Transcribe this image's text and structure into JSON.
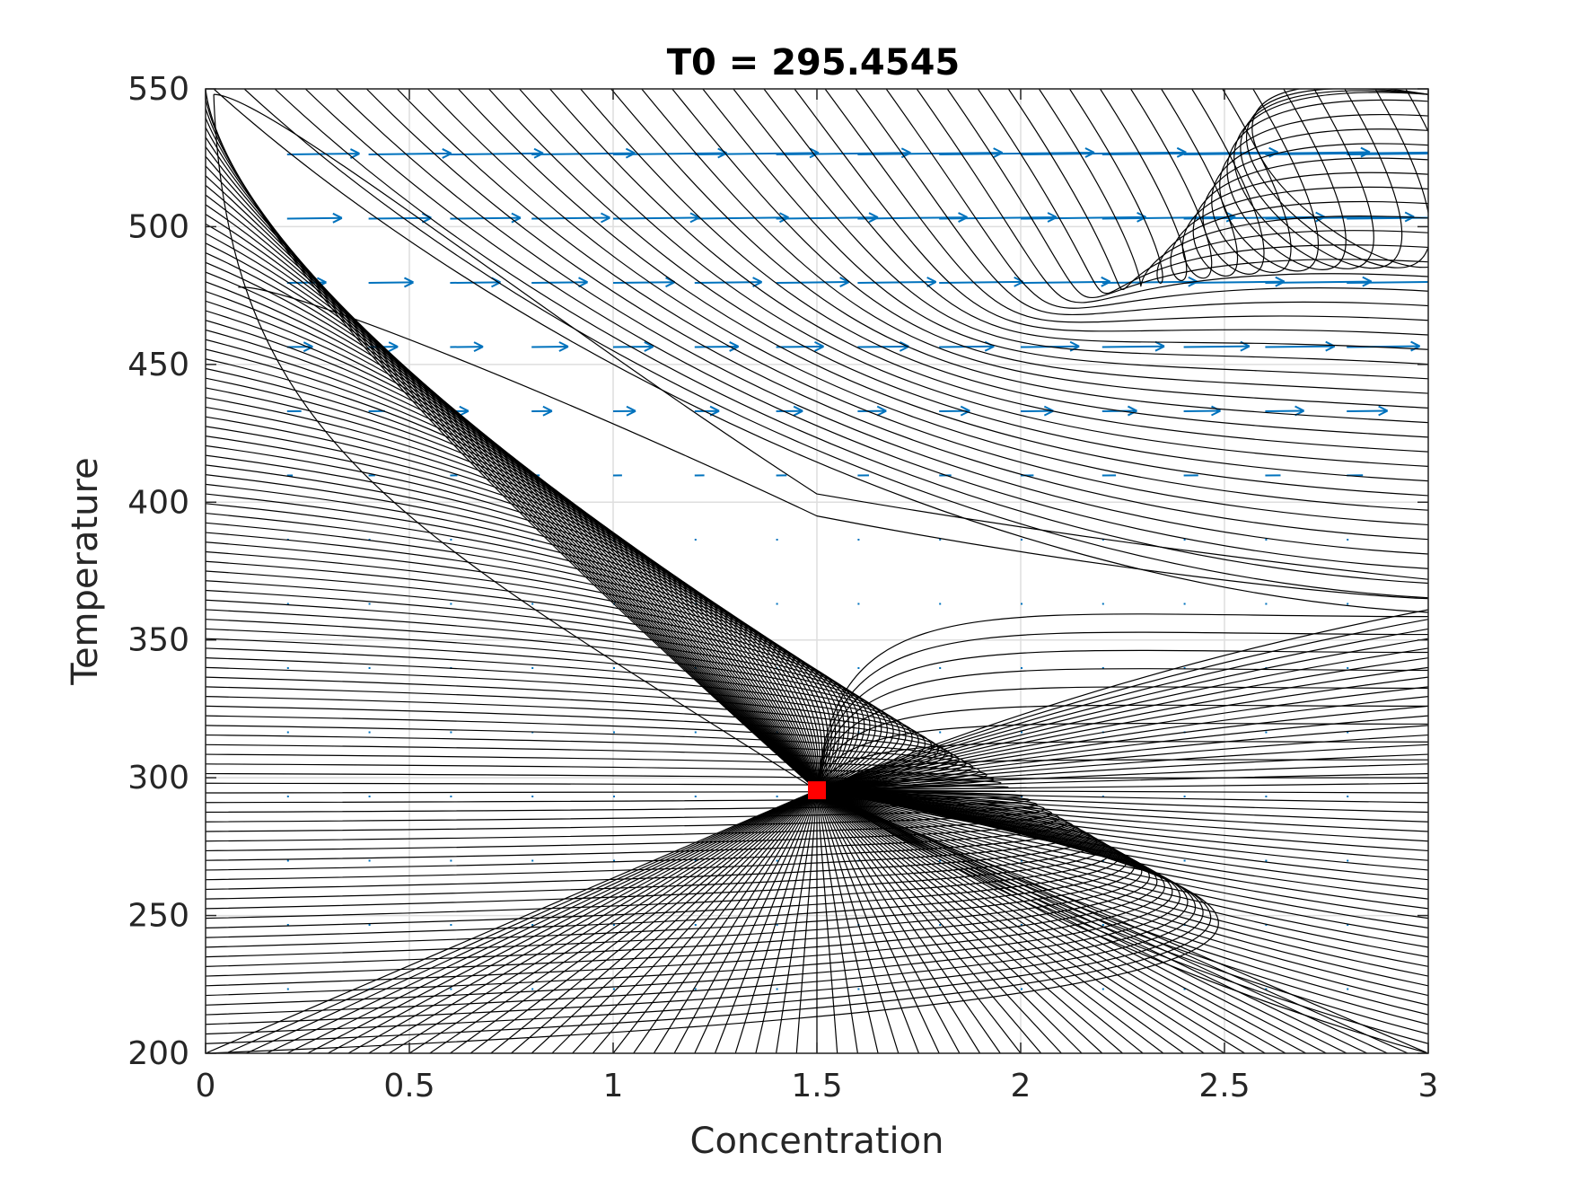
{
  "chart_data": {
    "type": "line",
    "title": "T0 = 295.4545",
    "xlabel": "Concentration",
    "ylabel": "Temperature",
    "xlim": [
      0,
      3
    ],
    "ylim": [
      200,
      550
    ],
    "xticks": [
      "0",
      "0.5",
      "1",
      "1.5",
      "2",
      "2.5",
      "3"
    ],
    "yticks": [
      "200",
      "250",
      "300",
      "350",
      "400",
      "450",
      "500",
      "550"
    ],
    "grid": true,
    "equilibrium_point": {
      "x": 1.5,
      "y": 295.4545,
      "color": "#ff0000",
      "marker": "square"
    },
    "trajectory_color": "#000000",
    "quiver_color": "#0072bd",
    "quiver_grid": {
      "x": [
        0.2,
        0.4,
        0.6,
        0.8,
        1.0,
        1.2,
        1.4,
        1.6,
        1.8,
        2.0,
        2.2,
        2.4,
        2.6,
        2.8
      ],
      "y": [
        223.3,
        246.6,
        269.9,
        293.2,
        316.5,
        339.8,
        363.1,
        386.4,
        409.7,
        433.0,
        456.3,
        479.6,
        502.9,
        526.2
      ]
    }
  }
}
